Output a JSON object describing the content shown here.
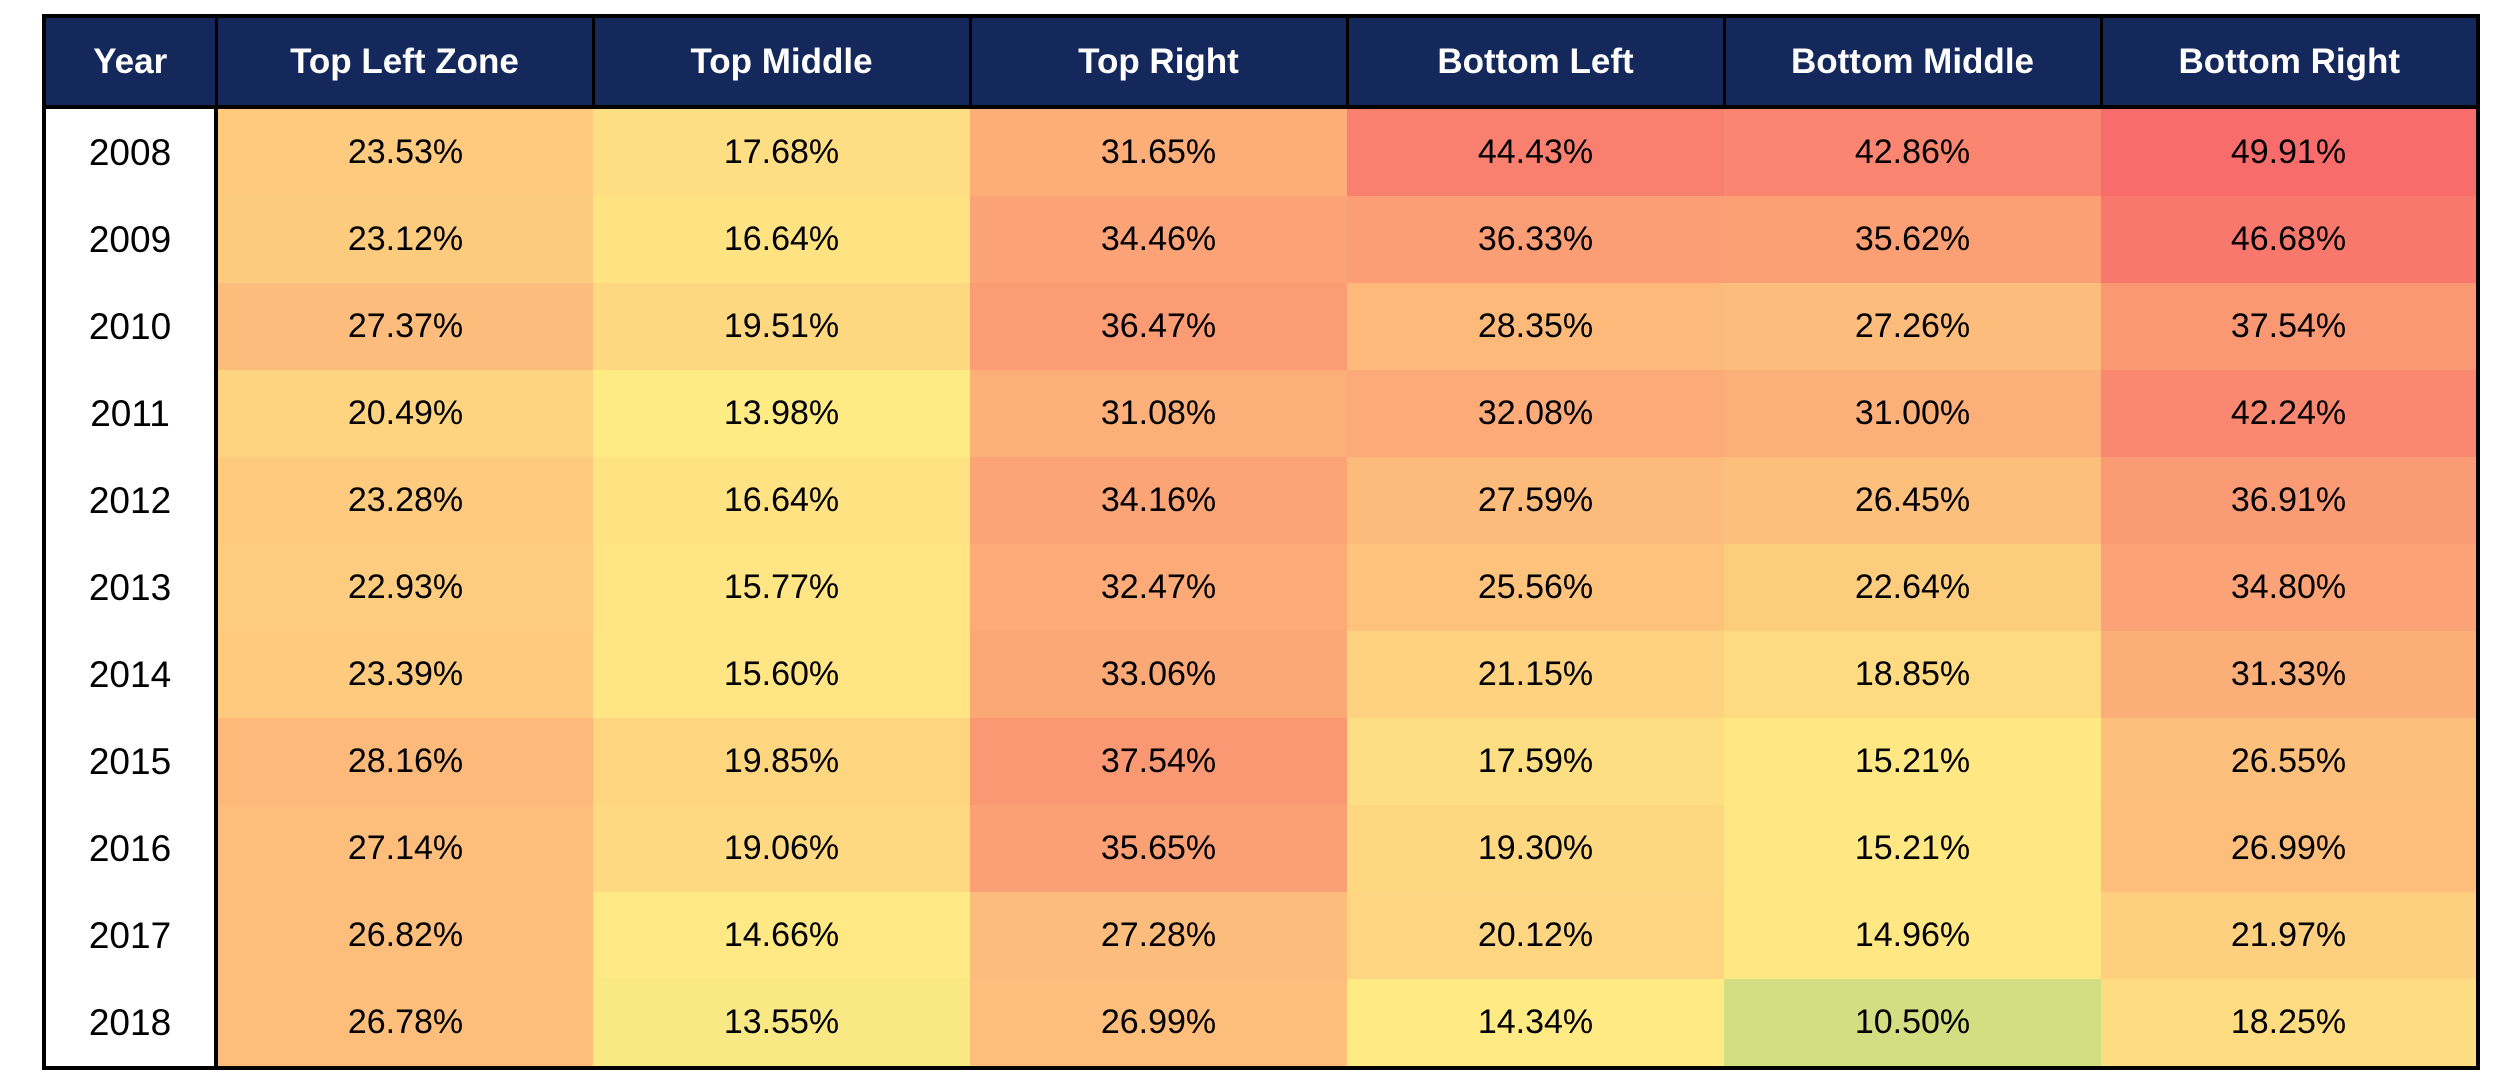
{
  "table": {
    "columns": [
      "Year",
      "Top Left Zone",
      "Top Middle",
      "Top Right",
      "Bottom Left",
      "Bottom Middle",
      "Bottom Right"
    ],
    "rows": [
      {
        "year": "2008",
        "cells": [
          "23.53%",
          "17.68%",
          "31.65%",
          "44.43%",
          "42.86%",
          "49.91%"
        ]
      },
      {
        "year": "2009",
        "cells": [
          "23.12%",
          "16.64%",
          "34.46%",
          "36.33%",
          "35.62%",
          "46.68%"
        ]
      },
      {
        "year": "2010",
        "cells": [
          "27.37%",
          "19.51%",
          "36.47%",
          "28.35%",
          "27.26%",
          "37.54%"
        ]
      },
      {
        "year": "2011",
        "cells": [
          "20.49%",
          "13.98%",
          "31.08%",
          "32.08%",
          "31.00%",
          "42.24%"
        ]
      },
      {
        "year": "2012",
        "cells": [
          "23.28%",
          "16.64%",
          "34.16%",
          "27.59%",
          "26.45%",
          "36.91%"
        ]
      },
      {
        "year": "2013",
        "cells": [
          "22.93%",
          "15.77%",
          "32.47%",
          "25.56%",
          "22.64%",
          "34.80%"
        ]
      },
      {
        "year": "2014",
        "cells": [
          "23.39%",
          "15.60%",
          "33.06%",
          "21.15%",
          "18.85%",
          "31.33%"
        ]
      },
      {
        "year": "2015",
        "cells": [
          "28.16%",
          "19.85%",
          "37.54%",
          "17.59%",
          "15.21%",
          "26.55%"
        ]
      },
      {
        "year": "2016",
        "cells": [
          "27.14%",
          "19.06%",
          "35.65%",
          "19.30%",
          "15.21%",
          "26.99%"
        ]
      },
      {
        "year": "2017",
        "cells": [
          "26.82%",
          "14.66%",
          "27.28%",
          "20.12%",
          "14.96%",
          "21.97%"
        ]
      },
      {
        "year": "2018",
        "cells": [
          "26.78%",
          "13.55%",
          "26.99%",
          "14.34%",
          "10.50%",
          "18.25%"
        ]
      }
    ]
  },
  "chart_data": {
    "type": "heatmap",
    "title": "",
    "row_label": "Year",
    "rows": [
      "2008",
      "2009",
      "2010",
      "2011",
      "2012",
      "2013",
      "2014",
      "2015",
      "2016",
      "2017",
      "2018"
    ],
    "columns": [
      "Top Left Zone",
      "Top Middle",
      "Top Right",
      "Bottom Left",
      "Bottom Middle",
      "Bottom Right"
    ],
    "value_unit": "percent",
    "values": [
      [
        23.53,
        17.68,
        31.65,
        44.43,
        42.86,
        49.91
      ],
      [
        23.12,
        16.64,
        34.46,
        36.33,
        35.62,
        46.68
      ],
      [
        27.37,
        19.51,
        36.47,
        28.35,
        27.26,
        37.54
      ],
      [
        20.49,
        13.98,
        31.08,
        32.08,
        31.0,
        42.24
      ],
      [
        23.28,
        16.64,
        34.16,
        27.59,
        26.45,
        36.91
      ],
      [
        22.93,
        15.77,
        32.47,
        25.56,
        22.64,
        34.8
      ],
      [
        23.39,
        15.6,
        33.06,
        21.15,
        18.85,
        31.33
      ],
      [
        28.16,
        19.85,
        37.54,
        17.59,
        15.21,
        26.55
      ],
      [
        27.14,
        19.06,
        35.65,
        19.3,
        15.21,
        26.99
      ],
      [
        26.82,
        14.66,
        27.28,
        20.12,
        14.96,
        21.97
      ],
      [
        26.78,
        13.55,
        26.99,
        14.34,
        10.5,
        18.25
      ]
    ],
    "value_min": 10.5,
    "value_max": 49.91,
    "colormap": "green-yellow-red",
    "grid": false,
    "legend": "none"
  },
  "colors": {
    "header_bg": "#14285C",
    "header_text": "#FFFFFF",
    "year_bg": "#FFFFFF",
    "cell_text": "#000000",
    "border": "#000000",
    "scale": [
      {
        "at": 2,
        "hex": "#63BE7B"
      },
      {
        "at": 14,
        "hex": "#FFEB84"
      },
      {
        "at": 51,
        "hex": "#F8696B"
      }
    ]
  }
}
